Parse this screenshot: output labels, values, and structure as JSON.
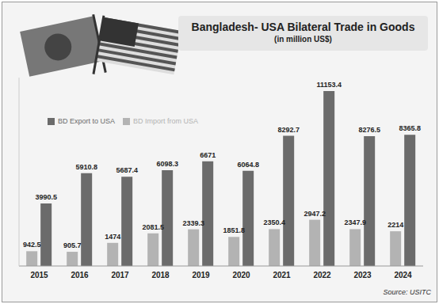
{
  "chart_data": {
    "type": "bar",
    "title": "Bangladesh- USA Bilateral Trade in Goods",
    "subtitle": "(in million US$)",
    "source": "Source: USITC",
    "categories": [
      "2015",
      "2016",
      "2017",
      "2018",
      "2019",
      "2020",
      "2021",
      "2022",
      "2023",
      "2024"
    ],
    "series": [
      {
        "name": "BD Import from USA",
        "color": "#b3b3b3",
        "values": [
          942.5,
          905.7,
          1474,
          2081.5,
          2339.3,
          1851.8,
          2350.4,
          2947.2,
          2347.9,
          2214
        ]
      },
      {
        "name": "BD Export to USA",
        "color": "#6b6b6b",
        "values": [
          3990.5,
          5910.8,
          5687.4,
          6098.3,
          6671,
          6064.8,
          8292.7,
          11153.4,
          8276.5,
          8365.8
        ]
      }
    ],
    "ylim": [
      0,
      12000
    ],
    "grid": false,
    "legend": "top",
    "data_labels": true,
    "tick_labels": "x"
  }
}
